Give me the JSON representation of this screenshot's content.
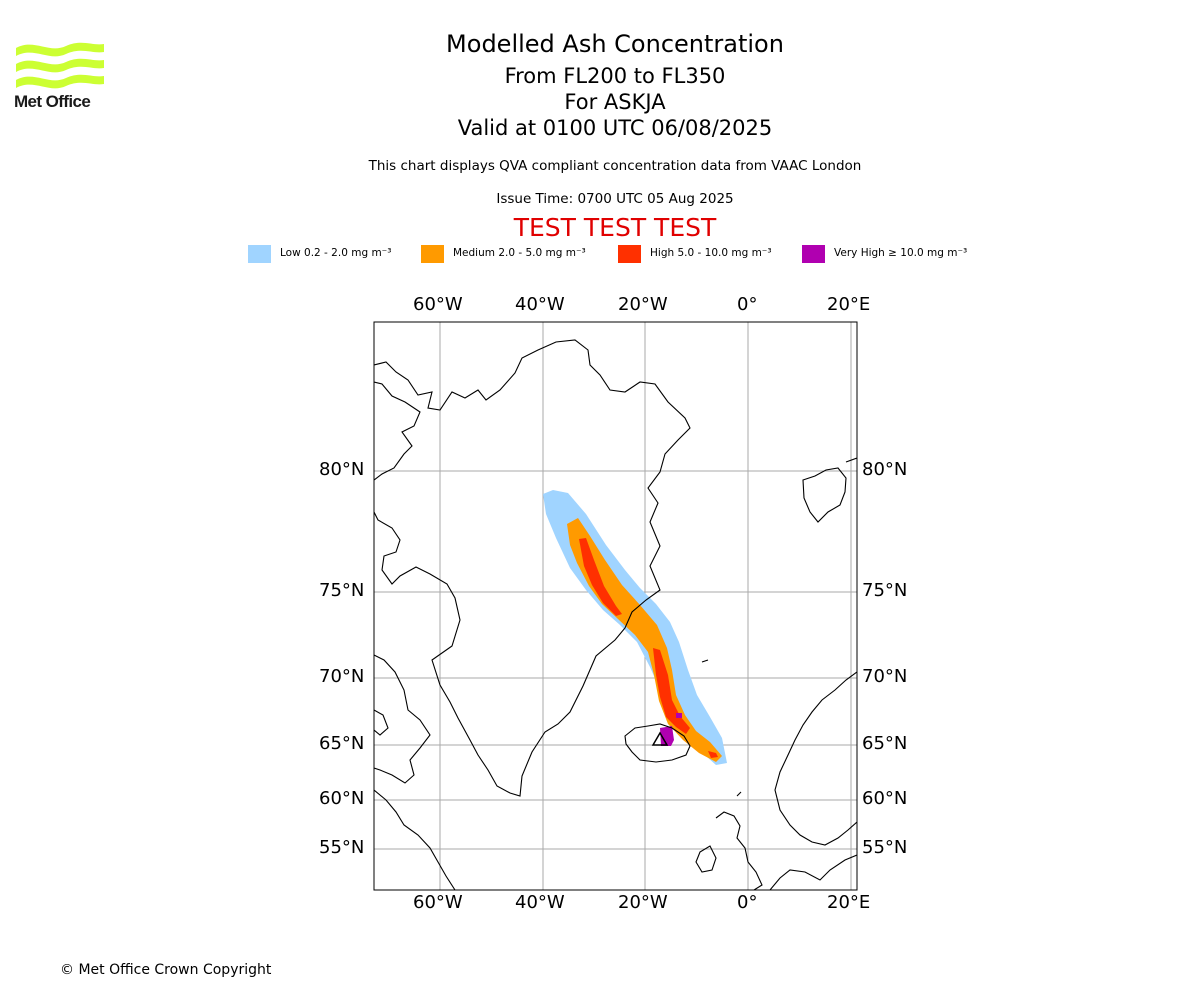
{
  "header": {
    "title": "Modelled Ash Concentration",
    "flight_levels": "From FL200 to FL350",
    "volcano": "For ASKJA",
    "valid_time": "Valid at 0100 UTC 06/08/2025",
    "description": "This chart displays QVA compliant concentration data from VAAC London",
    "issue_time": "Issue Time: 0700 UTC 05 Aug 2025",
    "test_banner": "TEST TEST TEST"
  },
  "logo": {
    "text": "Met Office",
    "color": "#ccff33"
  },
  "legend": {
    "items": [
      {
        "label": "Low 0.2 - 2.0 mg m⁻³",
        "color": "#a0d4ff"
      },
      {
        "label": "Medium 2.0 - 5.0 mg m⁻³",
        "color": "#ff9a00"
      },
      {
        "label": "High 5.0 - 10.0 mg m⁻³",
        "color": "#ff3000"
      },
      {
        "label": "Very High ≥ 10.0 mg m⁻³",
        "color": "#b000b0"
      }
    ]
  },
  "map": {
    "longitude_labels": [
      "60°W",
      "40°W",
      "20°W",
      "0°",
      "20°E"
    ],
    "latitude_labels": [
      "80°N",
      "75°N",
      "70°N",
      "65°N",
      "60°N",
      "55°N"
    ],
    "grid": true
  },
  "footer": {
    "copyright": "© Met Office Crown Copyright"
  }
}
